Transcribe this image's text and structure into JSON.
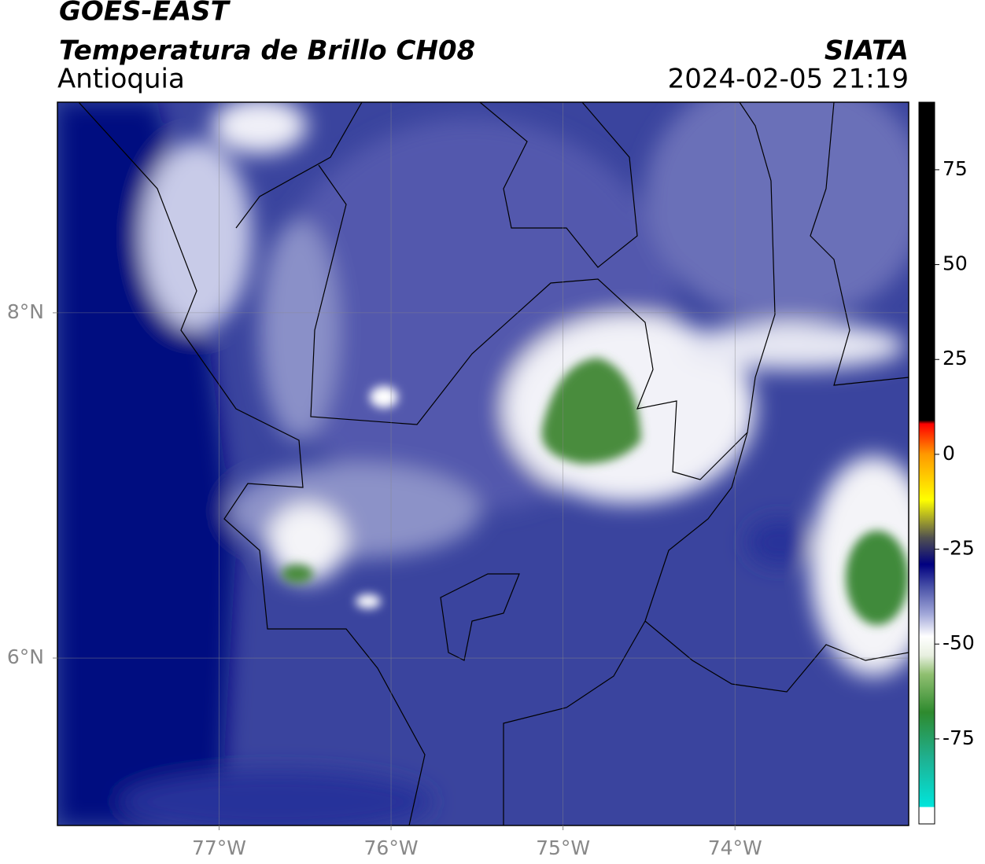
{
  "title": "GOES-EAST",
  "subtitle": "Temperatura de Brillo CH08",
  "region": "Antioquia",
  "source": "SIATA",
  "timestamp": "2024-02-05 21:19",
  "map": {
    "xlim": [
      -77.94,
      -72.99
    ],
    "ylim": [
      5.03,
      9.22
    ],
    "xticks": [
      {
        "value": -77,
        "label": "77°W"
      },
      {
        "value": -76,
        "label": "76°W"
      },
      {
        "value": -75,
        "label": "75°W"
      },
      {
        "value": -74,
        "label": "74°W"
      }
    ],
    "yticks": [
      {
        "value": 6,
        "label": "6°N"
      },
      {
        "value": 8,
        "label": "8°N"
      }
    ],
    "grid": true
  },
  "colorbar": {
    "ylim": [
      -97.4,
      92.8
    ],
    "yticks": [
      75,
      50,
      25,
      0,
      -25,
      -50,
      -75
    ],
    "stops": [
      {
        "value": -97.4,
        "color": "#ffffff"
      },
      {
        "value": -93,
        "color": "#ffffff"
      },
      {
        "value": -92.9,
        "color": "#00e5dc"
      },
      {
        "value": -80,
        "color": "#1fb090"
      },
      {
        "value": -68,
        "color": "#2e8a2e"
      },
      {
        "value": -58,
        "color": "#8fbf70"
      },
      {
        "value": -53,
        "color": "#e8f0e0"
      },
      {
        "value": -48,
        "color": "#ffffff"
      },
      {
        "value": -42,
        "color": "#a0a6d8"
      },
      {
        "value": -35,
        "color": "#4a52a8"
      },
      {
        "value": -29,
        "color": "#000080"
      },
      {
        "value": -22,
        "color": "#505050"
      },
      {
        "value": -12,
        "color": "#ffff00"
      },
      {
        "value": 0,
        "color": "#ff9900"
      },
      {
        "value": 8,
        "color": "#ff0000"
      },
      {
        "value": 9,
        "color": "#000000"
      },
      {
        "value": 92.8,
        "color": "#000000"
      }
    ]
  }
}
